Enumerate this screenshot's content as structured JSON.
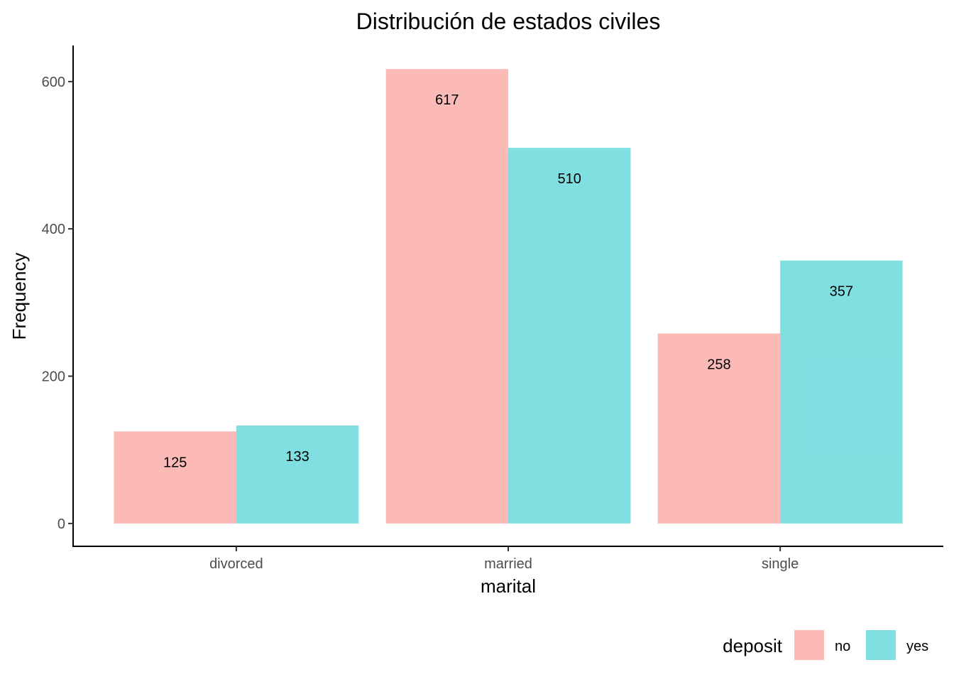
{
  "chart_data": {
    "type": "bar",
    "title": "Distribución de estados civiles",
    "xlabel": "marital",
    "ylabel": "Frequency",
    "categories": [
      "divorced",
      "married",
      "single"
    ],
    "series": [
      {
        "name": "no",
        "values": [
          125,
          617,
          258
        ],
        "color": "#F8766D"
      },
      {
        "name": "yes",
        "values": [
          133,
          510,
          357
        ],
        "color": "#00BFC4"
      }
    ],
    "bar_opacity": 0.5,
    "ylim": [
      -31,
      649
    ],
    "yticks": [
      0,
      200,
      400,
      600
    ],
    "grid": false,
    "legend": {
      "title": "deposit",
      "position": "bottom-right"
    }
  }
}
